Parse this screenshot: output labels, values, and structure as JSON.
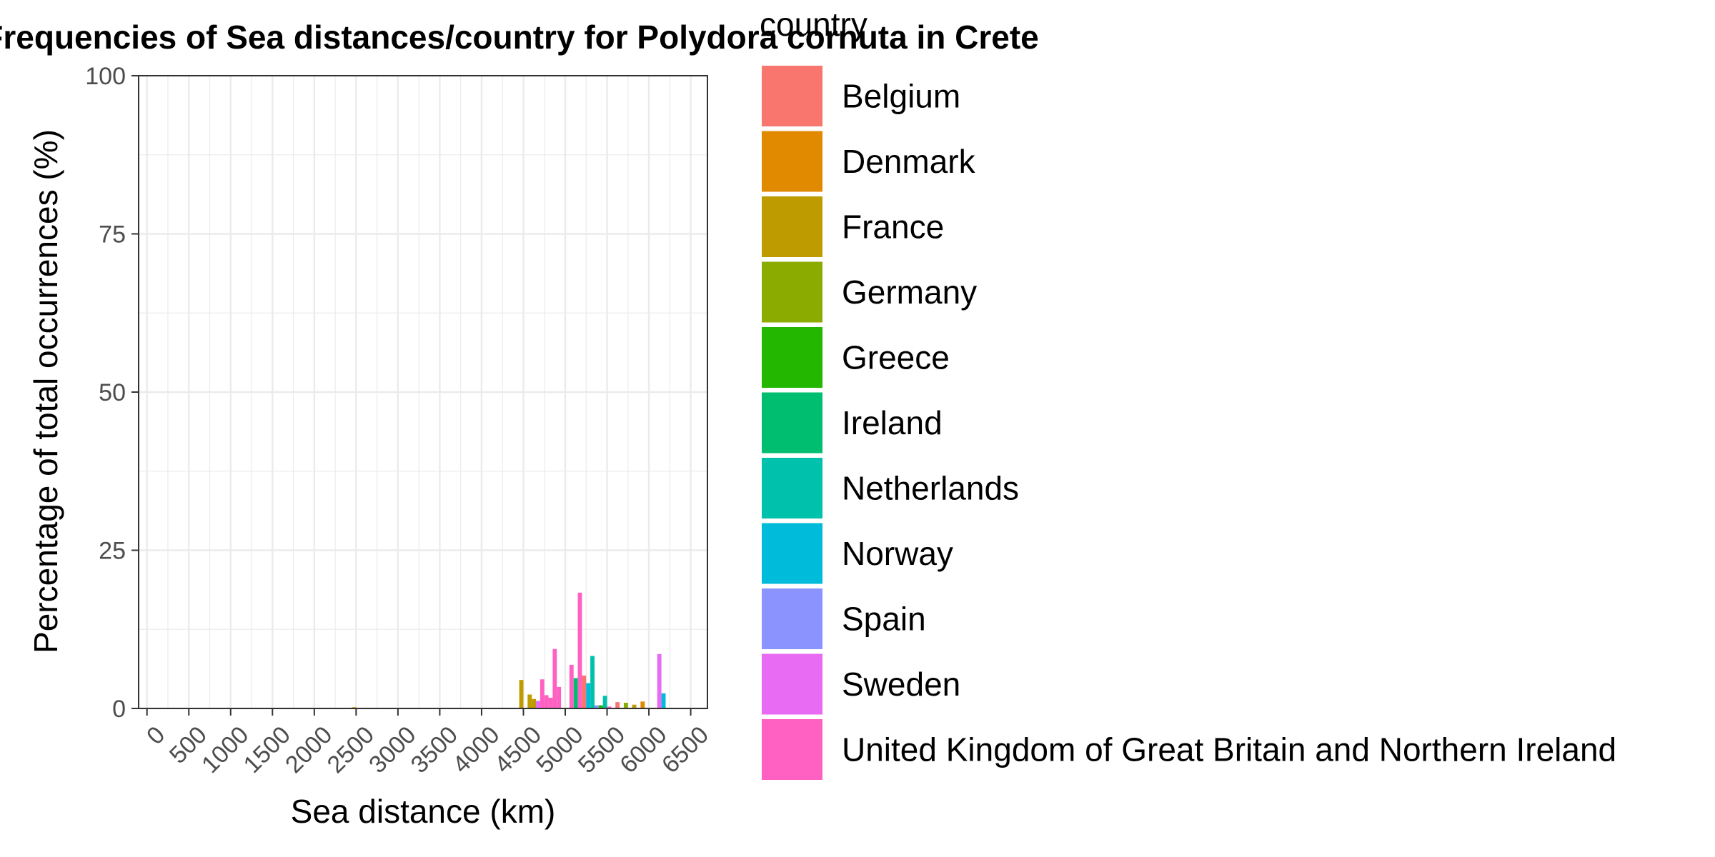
{
  "chart_data": {
    "type": "bar",
    "title": "Frequencies of Sea distances/country for Polydora cornuta in Crete",
    "xlabel": "Sea distance (km)",
    "ylabel": "Percentage of total occurrences (%)",
    "xlim": [
      -100,
      6700
    ],
    "ylim": [
      0,
      100
    ],
    "x_ticks": [
      0,
      500,
      1000,
      1500,
      2000,
      2500,
      3000,
      3500,
      4000,
      4500,
      5000,
      5500,
      6000,
      6500
    ],
    "y_ticks": [
      0,
      25,
      50,
      75,
      100
    ],
    "bin_width": 50,
    "grid": true,
    "legend_position": "right",
    "legend_title": "country",
    "series": [
      {
        "name": "Belgium",
        "color": "#F8766D",
        "points": [
          {
            "x": 5225,
            "y": 5.2
          },
          {
            "x": 5625,
            "y": 1.0
          }
        ]
      },
      {
        "name": "Denmark",
        "color": "#E18A00",
        "points": [
          {
            "x": 5925,
            "y": 1.1
          }
        ]
      },
      {
        "name": "France",
        "color": "#BE9C00",
        "points": [
          {
            "x": 2475,
            "y": 0.2
          },
          {
            "x": 4475,
            "y": 4.5
          },
          {
            "x": 4575,
            "y": 2.2
          },
          {
            "x": 4625,
            "y": 1.5
          },
          {
            "x": 5825,
            "y": 0.6
          }
        ]
      },
      {
        "name": "Germany",
        "color": "#8CAB00",
        "points": [
          {
            "x": 5725,
            "y": 0.9
          }
        ]
      },
      {
        "name": "Greece",
        "color": "#24B700",
        "points": [
          {
            "x": 5425,
            "y": 0.5
          }
        ]
      },
      {
        "name": "Ireland",
        "color": "#00BE70",
        "points": [
          {
            "x": 5125,
            "y": 4.8
          }
        ]
      },
      {
        "name": "Netherlands",
        "color": "#00C1AB",
        "points": [
          {
            "x": 5325,
            "y": 8.3
          },
          {
            "x": 5475,
            "y": 2.0
          }
        ]
      },
      {
        "name": "Norway",
        "color": "#00BBDA",
        "points": [
          {
            "x": 5275,
            "y": 4.0
          },
          {
            "x": 6175,
            "y": 2.4
          }
        ]
      },
      {
        "name": "Spain",
        "color": "#8B93FF",
        "points": [
          {
            "x": 5375,
            "y": 0.5
          }
        ]
      },
      {
        "name": "Sweden",
        "color": "#E76BF3",
        "points": [
          {
            "x": 6125,
            "y": 8.6
          },
          {
            "x": 4675,
            "y": 1.2
          }
        ]
      },
      {
        "name": "United Kingdom of Great Britain and Northern Ireland",
        "color": "#FF61C3",
        "points": [
          {
            "x": 4725,
            "y": 4.6
          },
          {
            "x": 4775,
            "y": 2.1
          },
          {
            "x": 4825,
            "y": 1.7
          },
          {
            "x": 4875,
            "y": 9.4
          },
          {
            "x": 4925,
            "y": 3.4
          },
          {
            "x": 5075,
            "y": 6.9
          },
          {
            "x": 5175,
            "y": 18.3
          },
          {
            "x": 5525,
            "y": 0.3
          }
        ]
      }
    ]
  }
}
